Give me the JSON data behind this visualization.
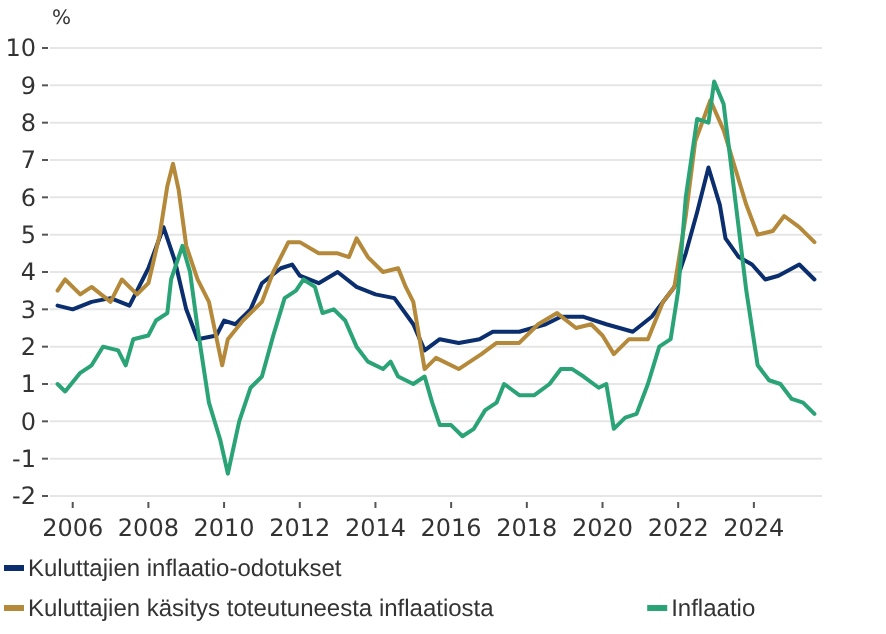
{
  "chart_data": {
    "type": "line",
    "ylabel": "%",
    "xlim": [
      2005.4,
      2025.8
    ],
    "xticks": [
      2006,
      2008,
      2010,
      2012,
      2014,
      2016,
      2018,
      2020,
      2022,
      2024
    ],
    "ylim": [
      -2,
      10
    ],
    "yticks": [
      -2,
      -1,
      0,
      1,
      2,
      3,
      4,
      5,
      6,
      7,
      8,
      9,
      10
    ],
    "grid": "y",
    "legend": "bottom",
    "line_style": "solid",
    "marker": "none",
    "series": [
      {
        "name": "Kuluttajien inflaatio-odotukset",
        "color": "#0b2f6e",
        "x": [
          2005.6,
          2006,
          2006.5,
          2007,
          2007.5,
          2008,
          2008.4,
          2008.7,
          2009,
          2009.3,
          2009.8,
          2010,
          2010.3,
          2010.7,
          2011,
          2011.5,
          2011.8,
          2012,
          2012.5,
          2013,
          2013.5,
          2014,
          2014.5,
          2015,
          2015.3,
          2015.7,
          2016.2,
          2016.75,
          2017.1,
          2017.8,
          2018.5,
          2018.9,
          2019.5,
          2020.1,
          2020.8,
          2021.3,
          2021.9,
          2022.2,
          2022.5,
          2022.8,
          2023.1,
          2023.25,
          2023.6,
          2023.95,
          2024.3,
          2024.65,
          2025.2,
          2025.6
        ],
        "values": [
          3.1,
          3.0,
          3.2,
          3.3,
          3.1,
          4.1,
          5.2,
          4.3,
          3.0,
          2.2,
          2.3,
          2.7,
          2.6,
          3.0,
          3.7,
          4.1,
          4.2,
          3.9,
          3.7,
          4.0,
          3.6,
          3.4,
          3.3,
          2.6,
          1.9,
          2.2,
          2.1,
          2.2,
          2.4,
          2.4,
          2.6,
          2.8,
          2.8,
          2.6,
          2.4,
          2.8,
          3.6,
          4.5,
          5.6,
          6.8,
          5.8,
          4.9,
          4.4,
          4.2,
          3.8,
          3.9,
          4.2,
          3.8
        ]
      },
      {
        "name": "Kuluttajien käsitys toteutuneesta inflaatiosta",
        "color": "#b5893a",
        "x": [
          2005.6,
          2005.8,
          2006.2,
          2006.5,
          2007,
          2007.3,
          2007.7,
          2008,
          2008.3,
          2008.5,
          2008.65,
          2008.8,
          2009,
          2009.3,
          2009.6,
          2009.95,
          2010.1,
          2010.5,
          2011,
          2011.3,
          2011.7,
          2012,
          2012.5,
          2013,
          2013.3,
          2013.5,
          2013.8,
          2014.2,
          2014.6,
          2014.8,
          2015,
          2015.3,
          2015.6,
          2016.2,
          2016.8,
          2017.2,
          2017.8,
          2018.3,
          2018.8,
          2019.3,
          2019.7,
          2020,
          2020.3,
          2020.7,
          2021.2,
          2021.6,
          2021.9,
          2022.2,
          2022.45,
          2022.85,
          2023.2,
          2023.5,
          2023.8,
          2024.1,
          2024.5,
          2024.8,
          2025.2,
          2025.6
        ],
        "values": [
          3.5,
          3.8,
          3.4,
          3.6,
          3.2,
          3.8,
          3.4,
          3.7,
          5.0,
          6.3,
          6.9,
          6.2,
          4.7,
          3.8,
          3.2,
          1.5,
          2.2,
          2.7,
          3.2,
          4.0,
          4.8,
          4.8,
          4.5,
          4.5,
          4.4,
          4.9,
          4.4,
          4.0,
          4.1,
          3.6,
          3.2,
          1.4,
          1.7,
          1.4,
          1.8,
          2.1,
          2.1,
          2.6,
          2.9,
          2.5,
          2.6,
          2.3,
          1.8,
          2.2,
          2.2,
          3.2,
          3.6,
          5.5,
          7.5,
          8.6,
          7.8,
          6.8,
          5.8,
          5.0,
          5.1,
          5.5,
          5.2,
          4.8
        ]
      },
      {
        "name": "Inflaatio",
        "color": "#2aa477",
        "x": [
          2005.6,
          2005.8,
          2006.2,
          2006.5,
          2006.8,
          2007.2,
          2007.4,
          2007.6,
          2008,
          2008.2,
          2008.5,
          2008.6,
          2008.9,
          2009.1,
          2009.3,
          2009.6,
          2009.9,
          2010.1,
          2010.4,
          2010.7,
          2011,
          2011.3,
          2011.6,
          2011.9,
          2012.1,
          2012.4,
          2012.6,
          2012.9,
          2013.2,
          2013.5,
          2013.8,
          2014.2,
          2014.4,
          2014.6,
          2015,
          2015.3,
          2015.5,
          2015.7,
          2016,
          2016.3,
          2016.6,
          2016.9,
          2017.2,
          2017.4,
          2017.8,
          2018.2,
          2018.6,
          2018.9,
          2019.2,
          2019.5,
          2019.9,
          2020.1,
          2020.3,
          2020.6,
          2020.9,
          2021.2,
          2021.5,
          2021.8,
          2022,
          2022.2,
          2022.5,
          2022.8,
          2022.95,
          2023.2,
          2023.5,
          2023.8,
          2024.1,
          2024.4,
          2024.7,
          2025,
          2025.3,
          2025.6
        ],
        "values": [
          1.0,
          0.8,
          1.3,
          1.5,
          2.0,
          1.9,
          1.5,
          2.2,
          2.3,
          2.7,
          2.9,
          3.8,
          4.7,
          4.0,
          2.5,
          0.5,
          -0.5,
          -1.4,
          0.0,
          0.9,
          1.2,
          2.3,
          3.3,
          3.5,
          3.8,
          3.6,
          2.9,
          3.0,
          2.7,
          2.0,
          1.6,
          1.4,
          1.6,
          1.2,
          1.0,
          1.2,
          0.5,
          -0.1,
          -0.1,
          -0.4,
          -0.2,
          0.3,
          0.5,
          1.0,
          0.7,
          0.7,
          1.0,
          1.4,
          1.4,
          1.2,
          0.9,
          1.0,
          -0.2,
          0.1,
          0.2,
          1.0,
          2.0,
          2.2,
          3.5,
          6.0,
          8.1,
          8.0,
          9.1,
          8.5,
          6.0,
          3.5,
          1.5,
          1.1,
          1.0,
          0.6,
          0.5,
          0.2
        ]
      }
    ]
  }
}
